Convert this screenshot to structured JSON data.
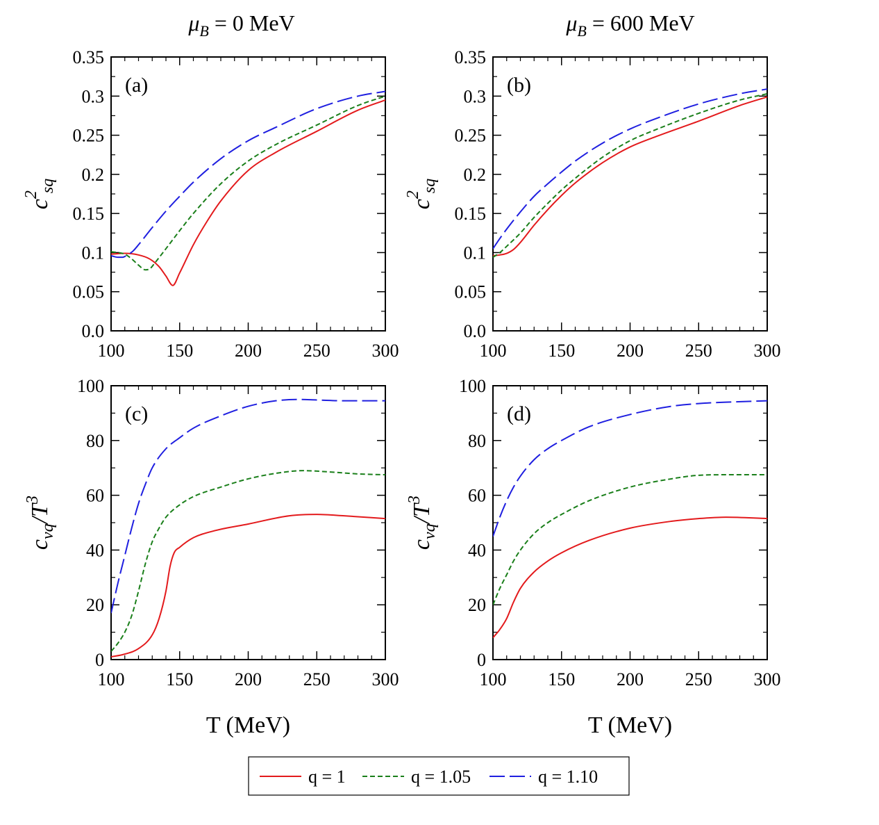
{
  "figure": {
    "column_titles": [
      {
        "mu": "μ",
        "sub": "B",
        "rest": " = 0 MeV"
      },
      {
        "mu": "μ",
        "sub": "B",
        "rest": " = 600 MeV"
      }
    ],
    "legend": {
      "entries": [
        {
          "label": "q = 1",
          "color": "#e31a1c",
          "dash": "solid"
        },
        {
          "label": "q = 1.05",
          "color": "#1a7f1a",
          "dash": "short"
        },
        {
          "label": "q = 1.10",
          "color": "#1f1fe0",
          "dash": "long"
        }
      ]
    }
  },
  "chart_data": [
    {
      "type": "line",
      "panel": "(a)",
      "column": 0,
      "ylabel": {
        "base": "c",
        "sup": "2",
        "sub": "sq"
      },
      "xlabel": "",
      "xlim": [
        100,
        300
      ],
      "ylim": [
        0,
        0.35
      ],
      "xticks": [
        100,
        150,
        200,
        250,
        300
      ],
      "xtick_labels": [
        "100",
        "150",
        "200",
        "250",
        "300"
      ],
      "yticks": [
        0,
        0.05,
        0.1,
        0.15,
        0.2,
        0.25,
        0.3,
        0.35
      ],
      "ytick_labels": [
        "0.0",
        "0.05",
        "0.1",
        "0.15",
        "0.2",
        "0.25",
        "0.3",
        "0.35"
      ],
      "series": [
        {
          "name": "q = 1",
          "x": [
            100,
            110,
            120,
            128,
            135,
            140,
            145,
            150,
            160,
            170,
            180,
            200,
            220,
            250,
            280,
            300
          ],
          "y": [
            0.098,
            0.099,
            0.097,
            0.092,
            0.082,
            0.07,
            0.058,
            0.074,
            0.11,
            0.14,
            0.166,
            0.205,
            0.228,
            0.255,
            0.282,
            0.295
          ]
        },
        {
          "name": "q = 1.05",
          "x": [
            100,
            105,
            110,
            115,
            120,
            125,
            128,
            132,
            140,
            150,
            160,
            180,
            200,
            220,
            250,
            280,
            300
          ],
          "y": [
            0.101,
            0.1,
            0.098,
            0.092,
            0.084,
            0.078,
            0.079,
            0.087,
            0.105,
            0.128,
            0.15,
            0.188,
            0.217,
            0.238,
            0.263,
            0.288,
            0.3
          ]
        },
        {
          "name": "q = 1.10",
          "x": [
            100,
            105,
            108,
            112,
            116,
            120,
            130,
            140,
            150,
            160,
            180,
            200,
            220,
            250,
            280,
            300
          ],
          "y": [
            0.096,
            0.094,
            0.094,
            0.097,
            0.102,
            0.11,
            0.132,
            0.153,
            0.172,
            0.19,
            0.22,
            0.243,
            0.26,
            0.284,
            0.3,
            0.306
          ]
        }
      ]
    },
    {
      "type": "line",
      "panel": "(b)",
      "column": 1,
      "ylabel": {
        "base": "c",
        "sup": "2",
        "sub": "sq"
      },
      "xlabel": "",
      "xlim": [
        100,
        300
      ],
      "ylim": [
        0,
        0.35
      ],
      "xticks": [
        100,
        150,
        200,
        250,
        300
      ],
      "xtick_labels": [
        "100",
        "150",
        "200",
        "250",
        "300"
      ],
      "yticks": [
        0,
        0.05,
        0.1,
        0.15,
        0.2,
        0.25,
        0.3,
        0.35
      ],
      "ytick_labels": [
        "0.0",
        "0.05",
        "0.1",
        "0.15",
        "0.2",
        "0.25",
        "0.3",
        "0.35"
      ],
      "series": [
        {
          "name": "q = 1",
          "x": [
            100,
            105,
            110,
            115,
            120,
            130,
            140,
            150,
            160,
            180,
            200,
            220,
            250,
            280,
            300
          ],
          "y": [
            0.096,
            0.097,
            0.099,
            0.104,
            0.113,
            0.135,
            0.155,
            0.173,
            0.189,
            0.215,
            0.235,
            0.249,
            0.268,
            0.288,
            0.299
          ]
        },
        {
          "name": "q = 1.05",
          "x": [
            100,
            105,
            110,
            120,
            130,
            140,
            150,
            160,
            180,
            200,
            220,
            250,
            280,
            300
          ],
          "y": [
            0.094,
            0.1,
            0.108,
            0.125,
            0.145,
            0.163,
            0.18,
            0.195,
            0.222,
            0.243,
            0.258,
            0.278,
            0.295,
            0.303
          ]
        },
        {
          "name": "q = 1.10",
          "x": [
            100,
            105,
            110,
            120,
            130,
            140,
            150,
            160,
            180,
            200,
            220,
            250,
            280,
            300
          ],
          "y": [
            0.105,
            0.118,
            0.13,
            0.152,
            0.172,
            0.188,
            0.203,
            0.217,
            0.24,
            0.258,
            0.272,
            0.29,
            0.303,
            0.309
          ]
        }
      ]
    },
    {
      "type": "line",
      "panel": "(c)",
      "column": 0,
      "ylabel": {
        "base": "c",
        "sub": "vq",
        "after": "/T",
        "sup": "3"
      },
      "xlabel": "T (MeV)",
      "xlim": [
        100,
        300
      ],
      "ylim": [
        0,
        100
      ],
      "xticks": [
        100,
        150,
        200,
        250,
        300
      ],
      "xtick_labels": [
        "100",
        "150",
        "200",
        "250",
        "300"
      ],
      "yticks": [
        0,
        20,
        40,
        60,
        80,
        100
      ],
      "ytick_labels": [
        "0",
        "20",
        "40",
        "60",
        "80",
        "100"
      ],
      "series": [
        {
          "name": "q = 1",
          "x": [
            100,
            110,
            120,
            130,
            135,
            140,
            143,
            146,
            150,
            160,
            175,
            200,
            230,
            250,
            270,
            300
          ],
          "y": [
            1,
            2,
            4,
            9,
            15,
            25,
            34,
            39,
            41,
            44.5,
            47,
            49.5,
            52.5,
            53,
            52.5,
            51.5
          ]
        },
        {
          "name": "q = 1.05",
          "x": [
            100,
            105,
            110,
            115,
            120,
            125,
            130,
            135,
            140,
            150,
            160,
            180,
            200,
            220,
            240,
            260,
            280,
            300
          ],
          "y": [
            3,
            6,
            10,
            16,
            25,
            35,
            43,
            48,
            52,
            56.5,
            59.5,
            63,
            66,
            68,
            69,
            68.5,
            67.8,
            67.5
          ]
        },
        {
          "name": "q = 1.10",
          "x": [
            100,
            105,
            110,
            115,
            120,
            125,
            130,
            140,
            150,
            160,
            180,
            200,
            220,
            235,
            250,
            270,
            300
          ],
          "y": [
            17,
            28,
            38,
            48,
            57,
            64,
            70,
            77,
            81,
            84.5,
            89,
            92.5,
            94.5,
            95,
            94.8,
            94.5,
            94.5
          ]
        }
      ]
    },
    {
      "type": "line",
      "panel": "(d)",
      "column": 1,
      "ylabel": {
        "base": "c",
        "sub": "vq",
        "after": "/T",
        "sup": "3"
      },
      "xlabel": "T (MeV)",
      "xlim": [
        100,
        300
      ],
      "ylim": [
        0,
        100
      ],
      "xticks": [
        100,
        150,
        200,
        250,
        300
      ],
      "xtick_labels": [
        "100",
        "150",
        "200",
        "250",
        "300"
      ],
      "yticks": [
        0,
        20,
        40,
        60,
        80,
        100
      ],
      "ytick_labels": [
        "0",
        "20",
        "40",
        "60",
        "80",
        "100"
      ],
      "series": [
        {
          "name": "q = 1",
          "x": [
            100,
            105,
            110,
            115,
            120,
            130,
            140,
            150,
            170,
            200,
            230,
            250,
            270,
            300
          ],
          "y": [
            8,
            11,
            15,
            21,
            26,
            32,
            36,
            39,
            43.5,
            48,
            50.5,
            51.5,
            52,
            51.5
          ]
        },
        {
          "name": "q = 1.05",
          "x": [
            100,
            105,
            110,
            115,
            120,
            130,
            140,
            150,
            170,
            200,
            230,
            250,
            270,
            300
          ],
          "y": [
            20,
            26,
            31,
            36,
            40,
            46,
            50,
            53,
            58,
            63,
            66,
            67.3,
            67.5,
            67.5
          ]
        },
        {
          "name": "q = 1.10",
          "x": [
            100,
            105,
            110,
            115,
            120,
            130,
            140,
            150,
            170,
            200,
            230,
            250,
            270,
            300
          ],
          "y": [
            45,
            52,
            58,
            63,
            67,
            73,
            77,
            80,
            85,
            89.5,
            92.5,
            93.5,
            94,
            94.5
          ]
        }
      ]
    }
  ]
}
